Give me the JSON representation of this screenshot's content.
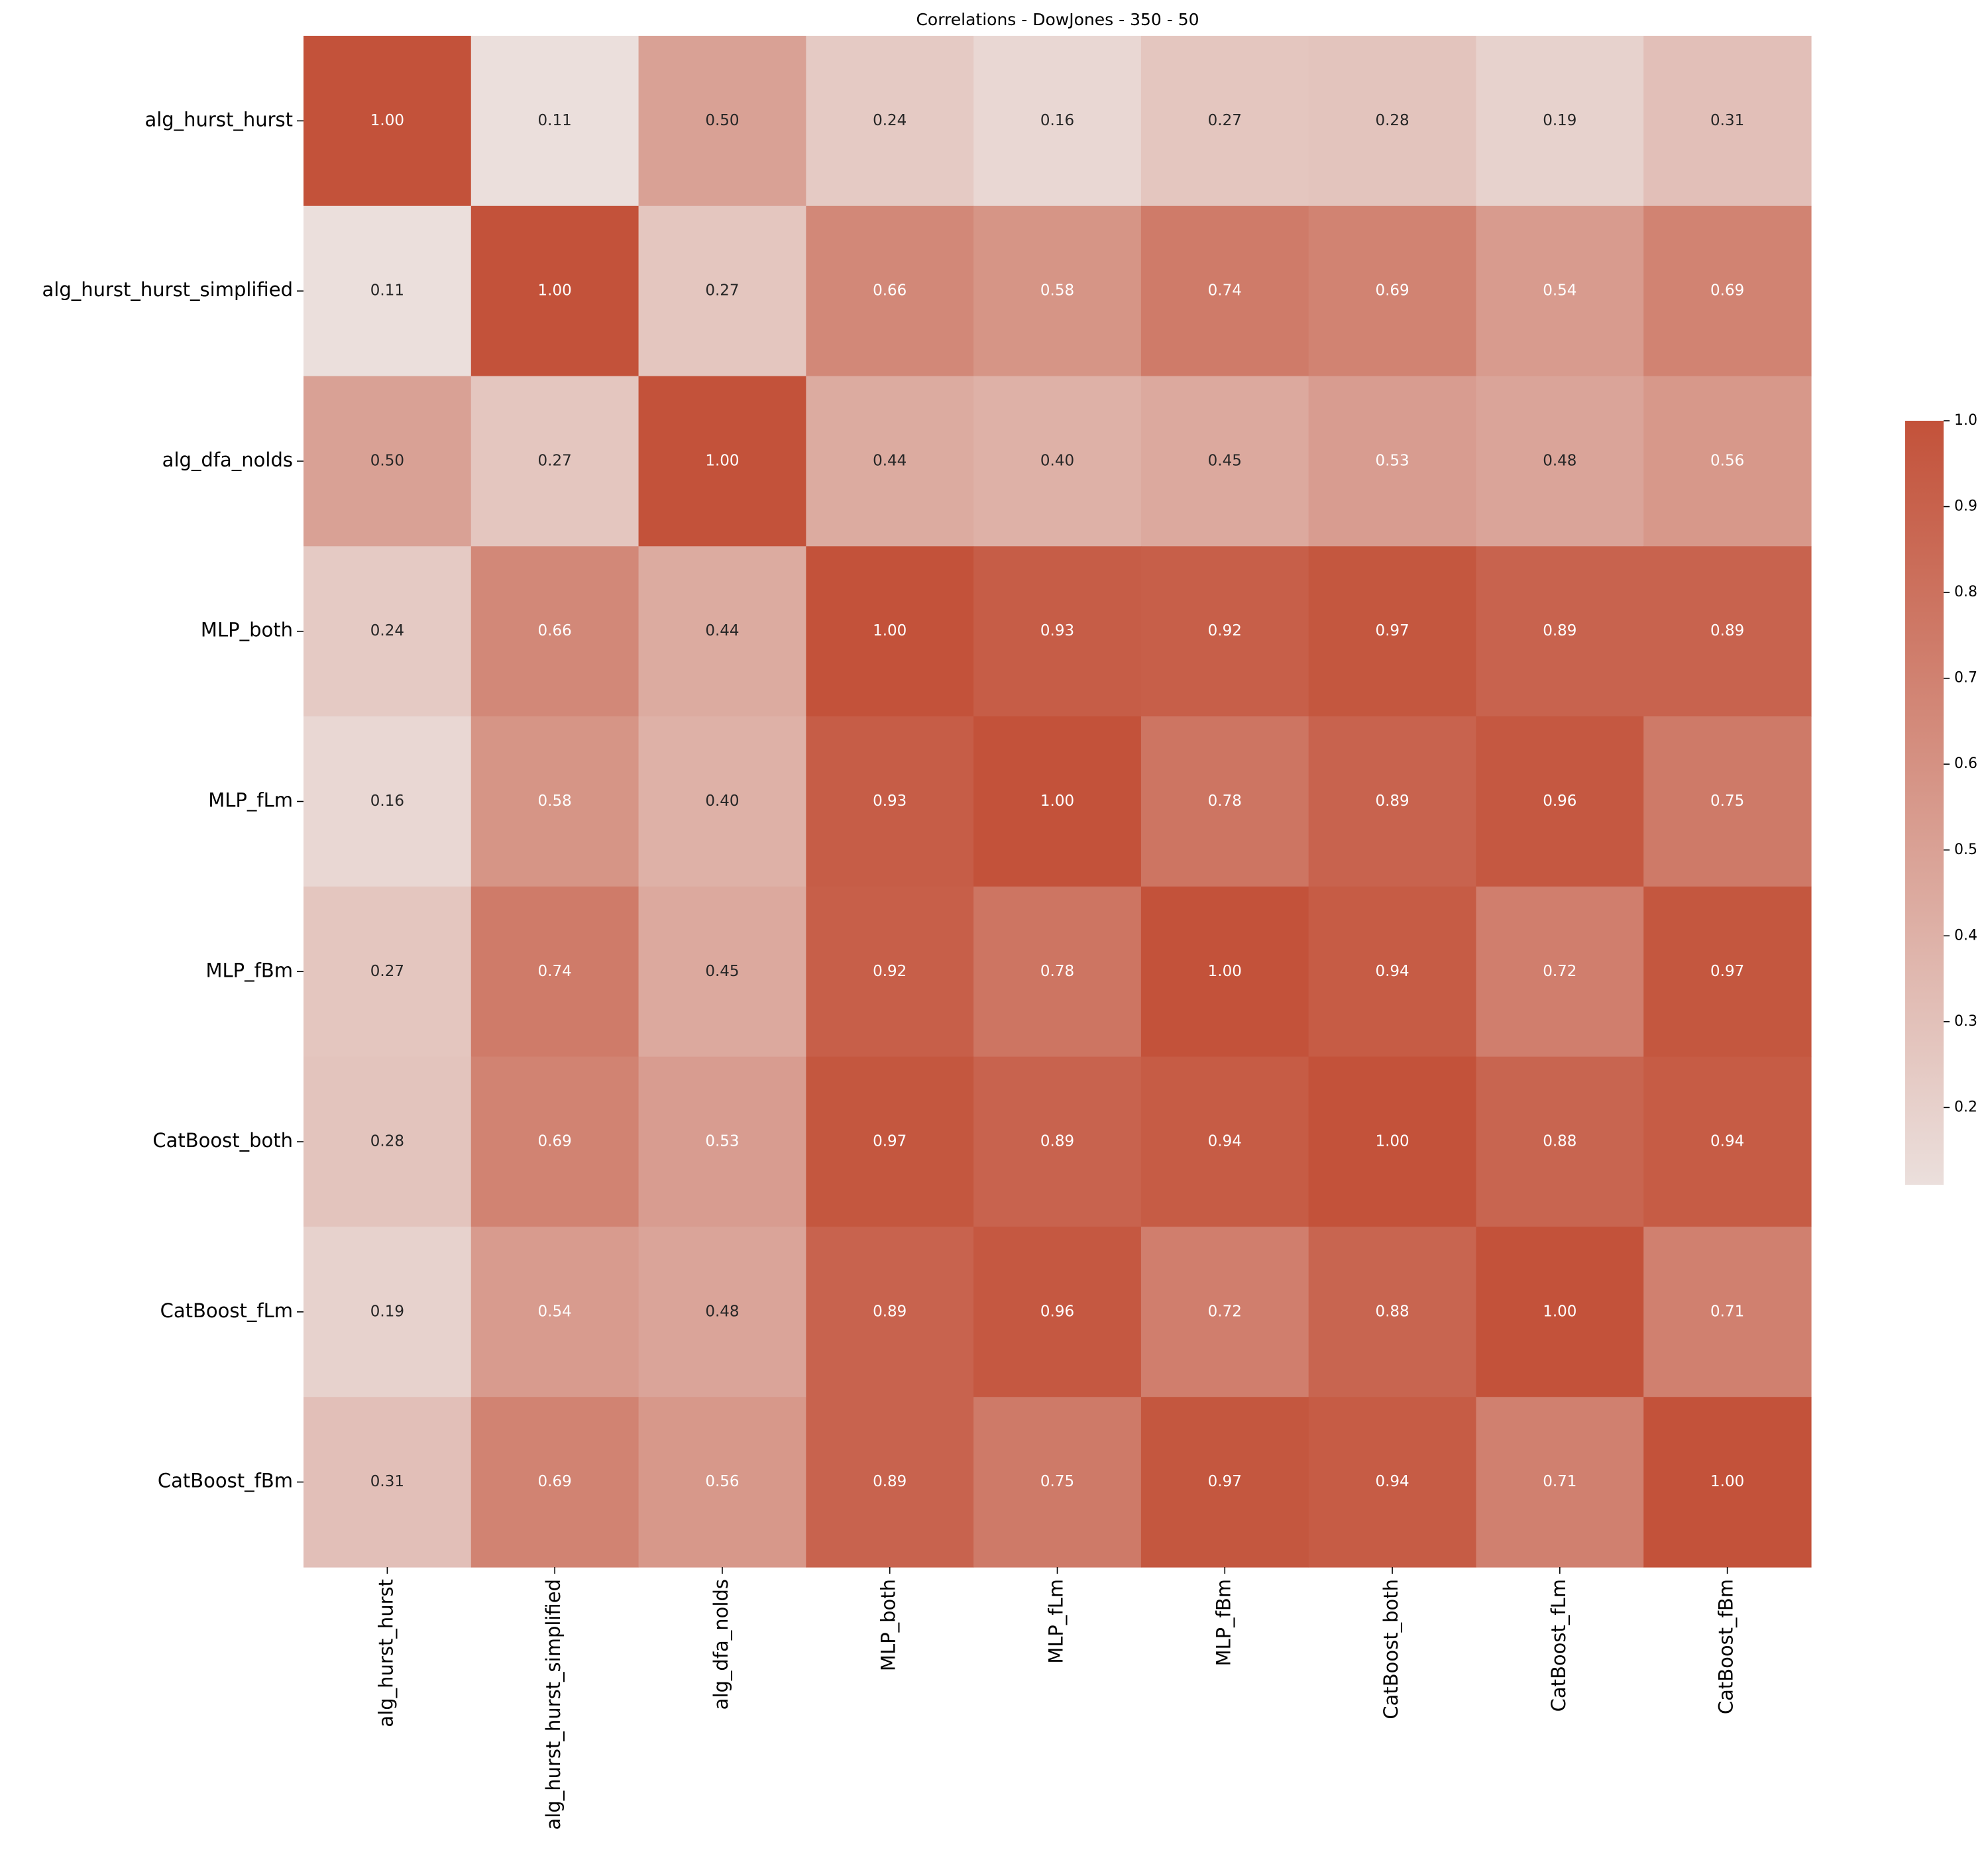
{
  "chart_data": {
    "type": "heatmap",
    "title": "Correlations - DowJones - 350 - 50",
    "xcategories": [
      "alg_hurst_hurst",
      "alg_hurst_hurst_simplified",
      "alg_dfa_nolds",
      "MLP_both",
      "MLP_fLm",
      "MLP_fBm",
      "CatBoost_both",
      "CatBoost_fLm",
      "CatBoost_fBm"
    ],
    "ycategories": [
      "alg_hurst_hurst",
      "alg_hurst_hurst_simplified",
      "alg_dfa_nolds",
      "MLP_both",
      "MLP_fLm",
      "MLP_fBm",
      "CatBoost_both",
      "CatBoost_fLm",
      "CatBoost_fBm"
    ],
    "values": [
      [
        1.0,
        0.11,
        0.5,
        0.24,
        0.16,
        0.27,
        0.28,
        0.19,
        0.31
      ],
      [
        0.11,
        1.0,
        0.27,
        0.66,
        0.58,
        0.74,
        0.69,
        0.54,
        0.69
      ],
      [
        0.5,
        0.27,
        1.0,
        0.44,
        0.4,
        0.45,
        0.53,
        0.48,
        0.56
      ],
      [
        0.24,
        0.66,
        0.44,
        1.0,
        0.93,
        0.92,
        0.97,
        0.89,
        0.89
      ],
      [
        0.16,
        0.58,
        0.4,
        0.93,
        1.0,
        0.78,
        0.89,
        0.96,
        0.75
      ],
      [
        0.27,
        0.74,
        0.45,
        0.92,
        0.78,
        1.0,
        0.94,
        0.72,
        0.97
      ],
      [
        0.28,
        0.69,
        0.53,
        0.97,
        0.89,
        0.94,
        1.0,
        0.88,
        0.94
      ],
      [
        0.19,
        0.54,
        0.48,
        0.89,
        0.96,
        0.72,
        0.88,
        1.0,
        0.71
      ],
      [
        0.31,
        0.69,
        0.56,
        0.89,
        0.75,
        0.97,
        0.94,
        0.71,
        1.0
      ]
    ],
    "value_labels": [
      [
        "1.00",
        "0.11",
        "0.50",
        "0.24",
        "0.16",
        "0.27",
        "0.28",
        "0.19",
        "0.31"
      ],
      [
        "0.11",
        "1.00",
        "0.27",
        "0.66",
        "0.58",
        "0.74",
        "0.69",
        "0.54",
        "0.69"
      ],
      [
        "0.50",
        "0.27",
        "1.00",
        "0.44",
        "0.40",
        "0.45",
        "0.53",
        "0.48",
        "0.56"
      ],
      [
        "0.24",
        "0.66",
        "0.44",
        "1.00",
        "0.93",
        "0.92",
        "0.97",
        "0.89",
        "0.89"
      ],
      [
        "0.16",
        "0.58",
        "0.40",
        "0.93",
        "1.00",
        "0.78",
        "0.89",
        "0.96",
        "0.75"
      ],
      [
        "0.27",
        "0.74",
        "0.45",
        "0.92",
        "0.78",
        "1.00",
        "0.94",
        "0.72",
        "0.97"
      ],
      [
        "0.28",
        "0.69",
        "0.53",
        "0.97",
        "0.89",
        "0.94",
        "1.00",
        "0.88",
        "0.94"
      ],
      [
        "0.19",
        "0.54",
        "0.48",
        "0.89",
        "0.96",
        "0.72",
        "0.88",
        "1.00",
        "0.71"
      ],
      [
        "0.31",
        "0.69",
        "0.56",
        "0.89",
        "0.75",
        "0.97",
        "0.94",
        "0.71",
        "1.00"
      ]
    ],
    "colors": [
      "#ebdfdc",
      "#c3523a"
    ],
    "clim": [
      0.11,
      1.0
    ],
    "cticks": [
      0.2,
      0.3,
      0.4,
      0.5,
      0.6,
      0.7,
      0.8,
      0.9,
      {
        "value": 1.0,
        "label": "1.0"
      }
    ]
  }
}
